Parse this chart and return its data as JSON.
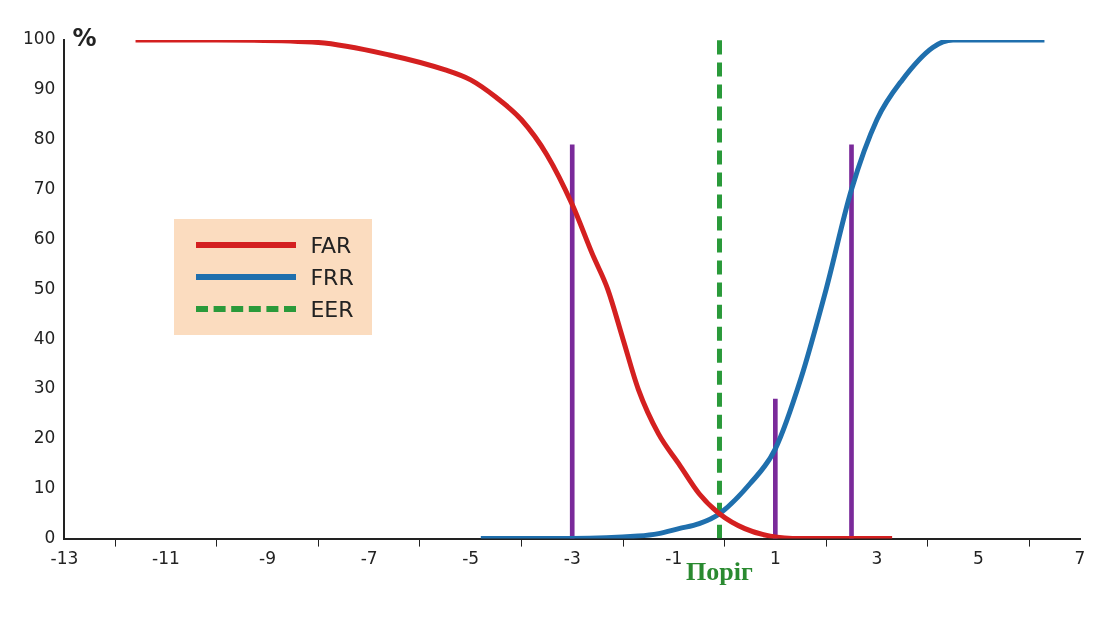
{
  "chart_data": {
    "type": "line",
    "ylabel": "%",
    "xlim": [
      -13,
      7
    ],
    "xticks": [
      -13,
      -11,
      -9,
      -7,
      -5,
      -3,
      -1,
      1,
      3,
      5,
      7
    ],
    "ylim": [
      0,
      100
    ],
    "yticks": [
      0,
      10,
      20,
      30,
      40,
      50,
      60,
      70,
      80,
      90,
      100
    ],
    "grid": false,
    "legend": "left",
    "marker": "none",
    "series": [
      {
        "name": "FAR",
        "color": "#d42020",
        "x": [
          -11.6,
          -10,
          -8,
          -6.6,
          -5.5,
          -5,
          -4.5,
          -4,
          -3.5,
          -3,
          -2.6,
          -2.3,
          -2,
          -1.7,
          -1.3,
          -0.9,
          -0.5,
          -0.1,
          0.4,
          0.9,
          1.5,
          2.5,
          3.3
        ],
        "values": [
          100,
          100,
          99.5,
          97,
          94,
          92,
          88.5,
          84,
          77,
          67,
          57,
          50,
          40,
          30,
          21,
          15,
          9,
          5,
          2,
          0.5,
          0,
          0,
          0
        ]
      },
      {
        "name": "FRR",
        "color": "#1f6fad",
        "x": [
          -4.8,
          -3,
          -1.7,
          -1.3,
          -0.9,
          -0.5,
          -0.1,
          0.5,
          1,
          1.5,
          2,
          2.5,
          3,
          3.5,
          4.1,
          4.5,
          5,
          6.3
        ],
        "values": [
          0,
          0,
          0.5,
          1,
          2,
          3,
          5,
          11,
          18,
          32,
          50,
          70,
          84,
          92,
          98.5,
          100,
          100,
          100
        ]
      },
      {
        "name": "EER",
        "color": "#2a9a3a",
        "line_style": "dashed",
        "x": [
          -0.1,
          -0.1
        ],
        "values": [
          0,
          100
        ]
      },
      {
        "type": "bar",
        "color": "#7a2a9a",
        "x": [
          -3,
          1,
          2.5
        ],
        "values": [
          79,
          28,
          79
        ]
      }
    ],
    "annotations": [
      {
        "text": "Поріг",
        "x": -0.1,
        "y": 0
      }
    ]
  }
}
